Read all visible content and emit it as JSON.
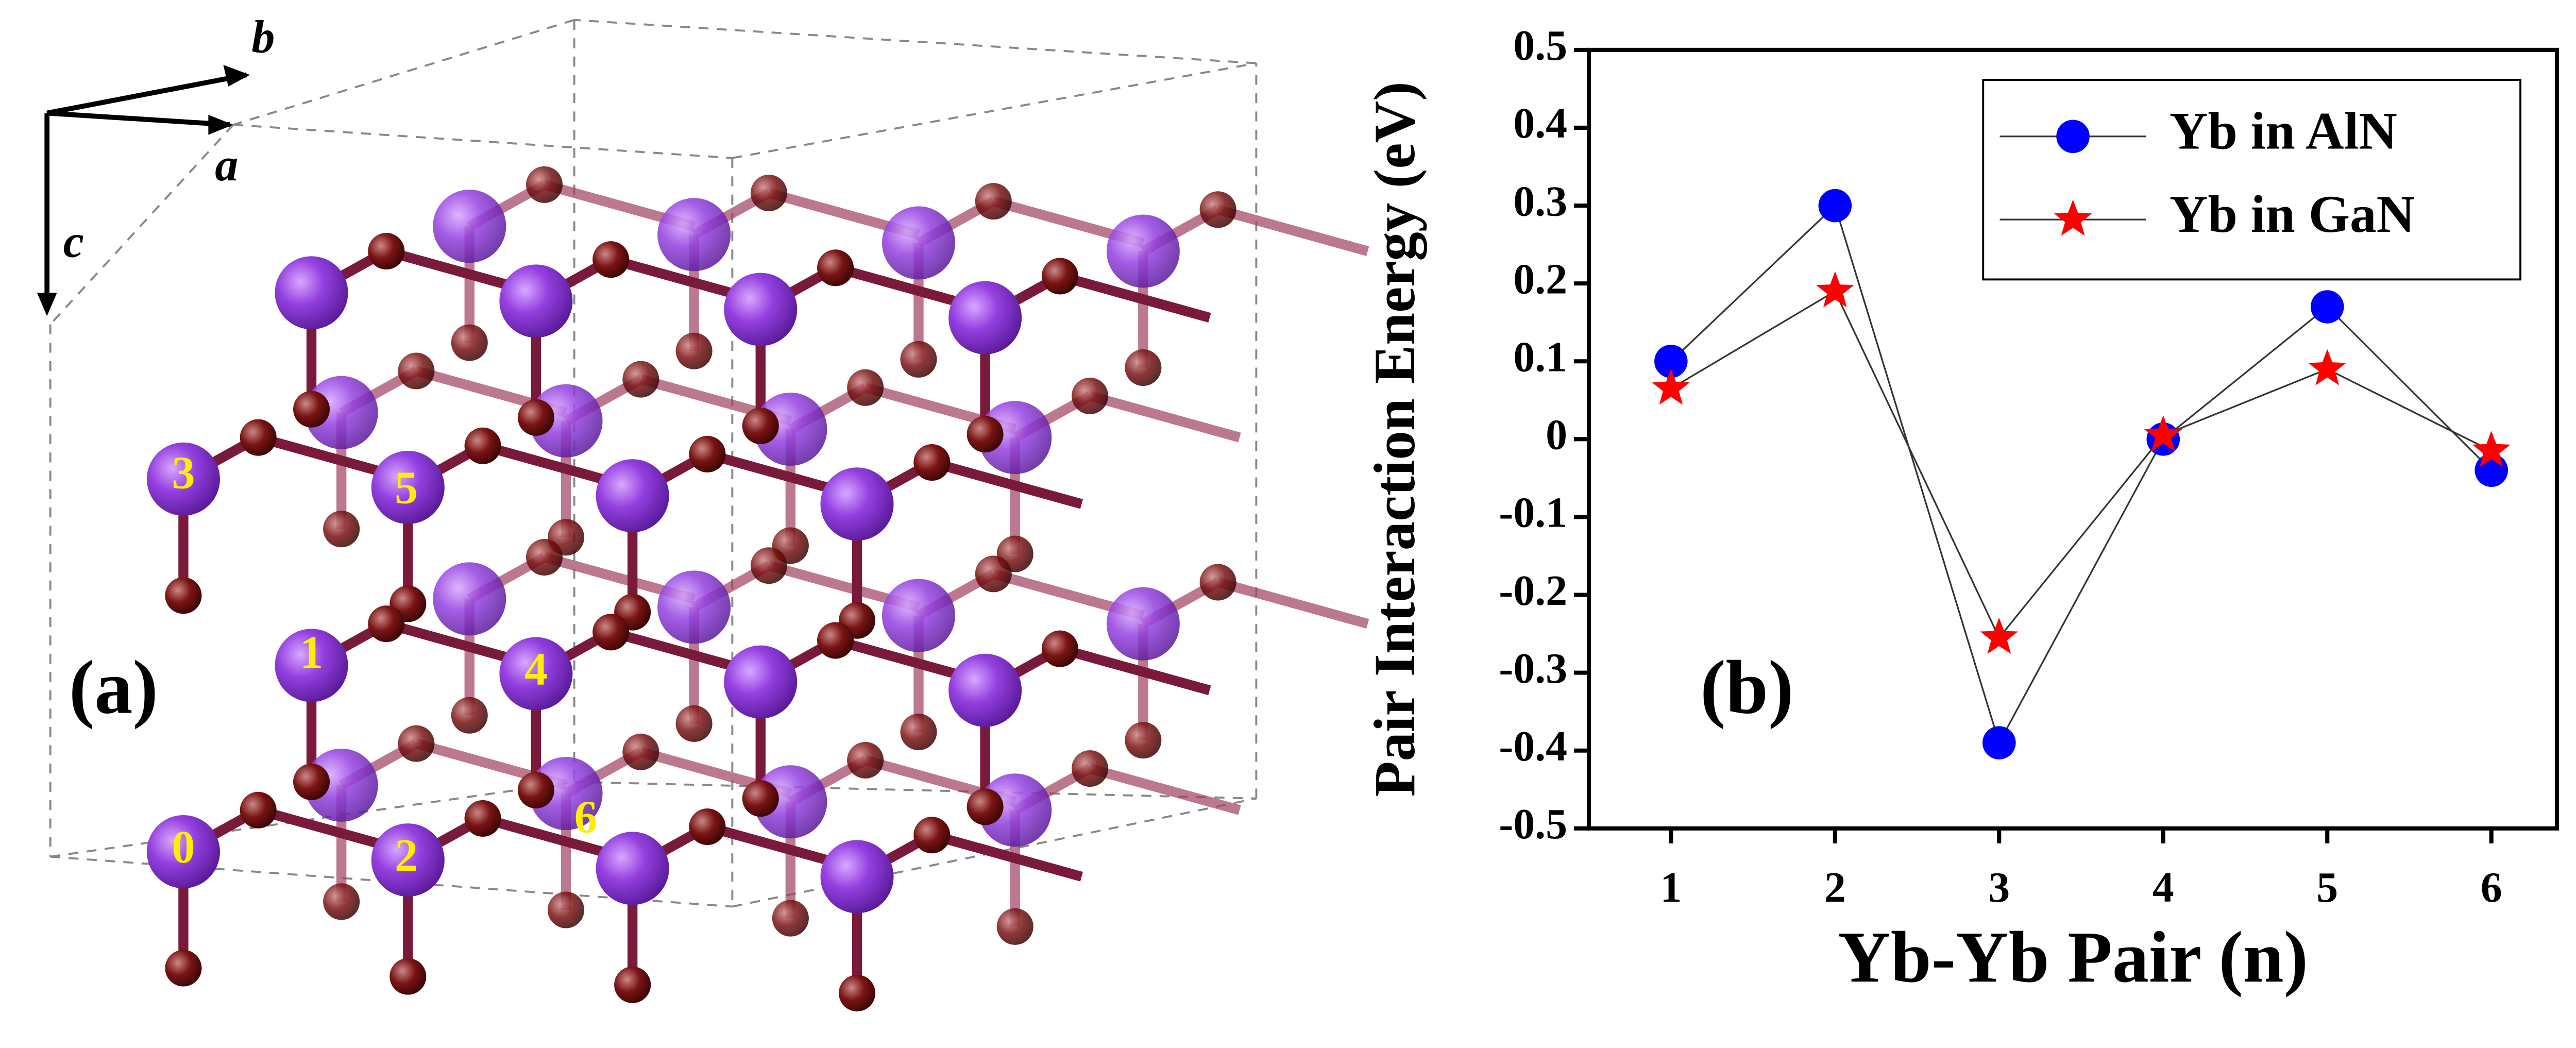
{
  "structure": {
    "panel_label": "(a)",
    "axis_labels": [
      "b",
      "a",
      "c"
    ],
    "site_labels": [
      "0",
      "1",
      "2",
      "3",
      "4",
      "5",
      "6"
    ]
  },
  "chart_data": {
    "type": "line",
    "annotation": "(b)",
    "ylabel": "Pair Interaction Energy (eV)",
    "xlabel": "Yb-Yb  Pair (n)",
    "x": [
      1,
      2,
      3,
      4,
      5,
      6
    ],
    "series": [
      {
        "name": "Yb in AlN",
        "color": "#0000ff",
        "marker": "circle",
        "values": [
          0.1,
          0.3,
          -0.39,
          0.0,
          0.17,
          -0.04
        ]
      },
      {
        "name": "Yb in GaN",
        "color": "#ff0000",
        "marker": "star",
        "values": [
          0.065,
          0.19,
          -0.255,
          0.005,
          0.09,
          -0.015
        ]
      }
    ],
    "xlim": [
      0.5,
      6.4
    ],
    "xticks": [
      1,
      2,
      3,
      4,
      5,
      6
    ],
    "ylim": [
      -0.5,
      0.5
    ],
    "yticks": [
      0.5,
      0.4,
      0.3,
      0.2,
      0.1,
      0,
      -0.1,
      -0.2,
      -0.3,
      -0.4,
      -0.5
    ],
    "legend": "upper-right",
    "line_color": "#333333"
  }
}
